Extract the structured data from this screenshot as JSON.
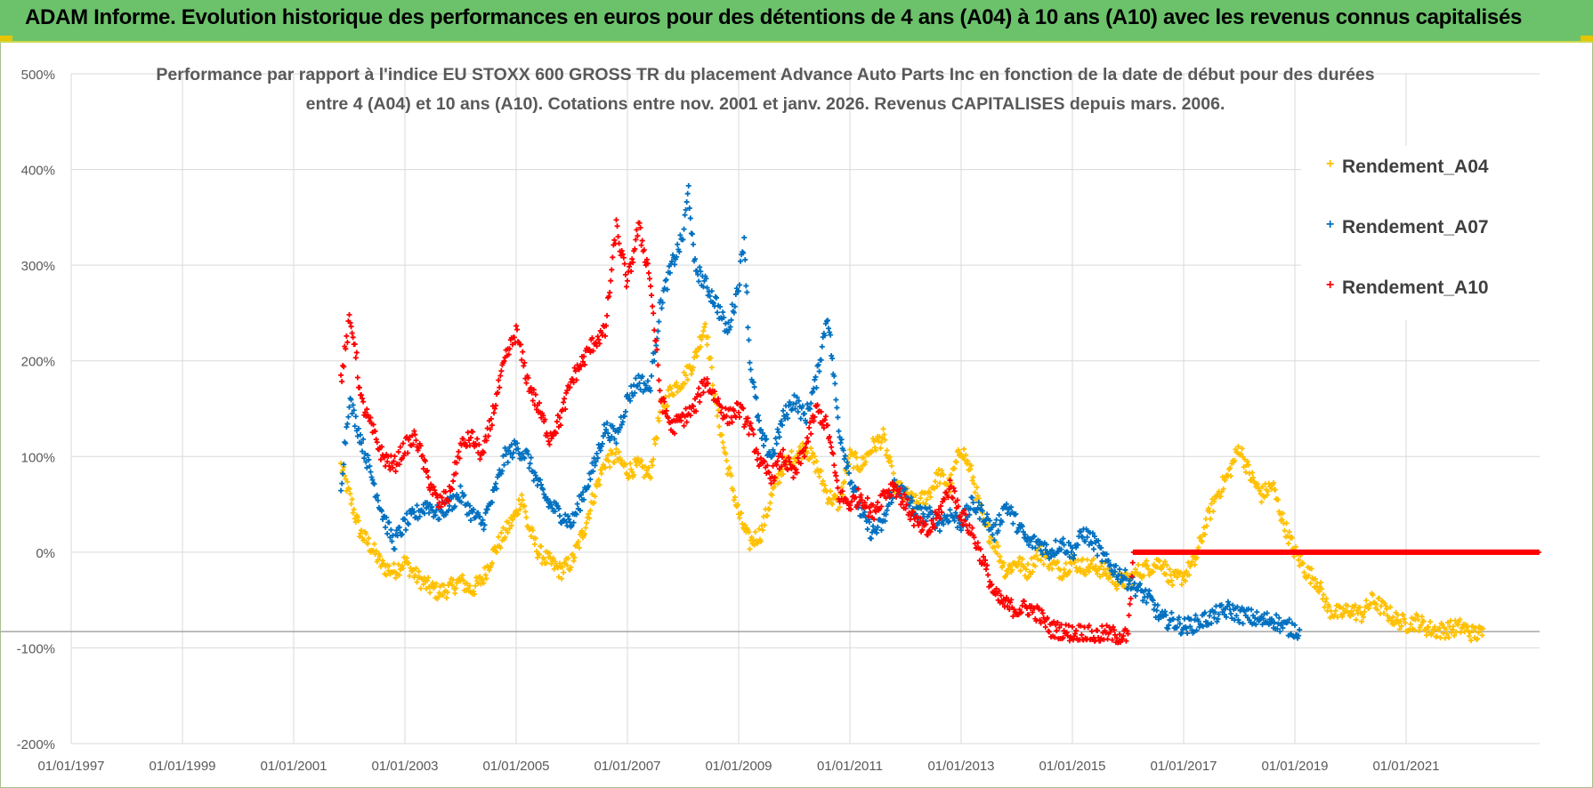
{
  "header": {
    "title": "ADAM Informe. Evolution historique des performances en euros pour des détentions de 4 ans (A04) à 10 ans (A10) avec les revenus connus capitalisés"
  },
  "colors": {
    "header_bg": "#6cc26b",
    "A04": "#ffc000",
    "A07": "#0070c0",
    "A10": "#ff0000",
    "grid": "#d9d9d9"
  },
  "chart_data": {
    "type": "scatter",
    "title_line1": "Performance par rapport à l'indice EU STOXX 600 GROSS TR  du placement Advance Auto Parts Inc en fonction de la date de début pour des durées",
    "title_line2": "entre 4 (A04) et 10 ans (A10).  Cotations entre nov. 2001 et janv. 2026. Revenus CAPITALISES depuis mars. 2006.",
    "xlabel": "",
    "ylabel": "",
    "x_range": [
      1997.0,
      2023.4
    ],
    "ylim": [
      -200,
      500
    ],
    "y_ticks": [
      500,
      400,
      300,
      200,
      100,
      0,
      -100,
      -200
    ],
    "y_tick_labels": [
      "500%",
      "400%",
      "300%",
      "200%",
      "100%",
      "0%",
      "-100%",
      "-200%"
    ],
    "x_ticks": [
      1997,
      1999,
      2001,
      2003,
      2005,
      2007,
      2009,
      2011,
      2013,
      2015,
      2017,
      2019,
      2021
    ],
    "x_tick_labels": [
      "01/01/1997",
      "01/01/1999",
      "01/01/2001",
      "01/01/2003",
      "01/01/2005",
      "01/01/2007",
      "01/01/2009",
      "01/01/2011",
      "01/01/2013",
      "01/01/2015",
      "01/01/2017",
      "01/01/2019",
      "01/01/2021"
    ],
    "reference_line": -83,
    "legend_position": "right",
    "series": [
      {
        "name": "Rendement_A04",
        "color": "#ffc000",
        "points": [
          [
            2001.85,
            90
          ],
          [
            2002.0,
            60
          ],
          [
            2002.2,
            20
          ],
          [
            2002.4,
            5
          ],
          [
            2002.6,
            -15
          ],
          [
            2002.8,
            -20
          ],
          [
            2003.0,
            -10
          ],
          [
            2003.2,
            -25
          ],
          [
            2003.4,
            -35
          ],
          [
            2003.6,
            -42
          ],
          [
            2003.8,
            -38
          ],
          [
            2004.0,
            -30
          ],
          [
            2004.2,
            -40
          ],
          [
            2004.4,
            -28
          ],
          [
            2004.6,
            0
          ],
          [
            2004.8,
            20
          ],
          [
            2005.0,
            40
          ],
          [
            2005.1,
            60
          ],
          [
            2005.2,
            30
          ],
          [
            2005.4,
            0
          ],
          [
            2005.6,
            -10
          ],
          [
            2005.8,
            -20
          ],
          [
            2006.0,
            -10
          ],
          [
            2006.2,
            20
          ],
          [
            2006.4,
            60
          ],
          [
            2006.6,
            95
          ],
          [
            2006.8,
            100
          ],
          [
            2007.0,
            85
          ],
          [
            2007.2,
            90
          ],
          [
            2007.4,
            80
          ],
          [
            2007.6,
            150
          ],
          [
            2007.8,
            170
          ],
          [
            2008.0,
            180
          ],
          [
            2008.2,
            200
          ],
          [
            2008.4,
            240
          ],
          [
            2008.6,
            150
          ],
          [
            2008.8,
            90
          ],
          [
            2009.0,
            40
          ],
          [
            2009.2,
            10
          ],
          [
            2009.4,
            20
          ],
          [
            2009.6,
            60
          ],
          [
            2009.8,
            90
          ],
          [
            2010.0,
            100
          ],
          [
            2010.2,
            110
          ],
          [
            2010.4,
            90
          ],
          [
            2010.6,
            60
          ],
          [
            2010.8,
            50
          ],
          [
            2011.0,
            100
          ],
          [
            2011.2,
            90
          ],
          [
            2011.4,
            110
          ],
          [
            2011.6,
            120
          ],
          [
            2011.8,
            70
          ],
          [
            2012.0,
            60
          ],
          [
            2012.2,
            50
          ],
          [
            2012.4,
            60
          ],
          [
            2012.6,
            80
          ],
          [
            2012.8,
            70
          ],
          [
            2013.0,
            110
          ],
          [
            2013.2,
            80
          ],
          [
            2013.4,
            30
          ],
          [
            2013.6,
            10
          ],
          [
            2013.8,
            -20
          ],
          [
            2014.0,
            -10
          ],
          [
            2014.2,
            -20
          ],
          [
            2014.4,
            0
          ],
          [
            2014.6,
            -10
          ],
          [
            2014.8,
            -20
          ],
          [
            2015.0,
            -10
          ],
          [
            2015.2,
            -15
          ],
          [
            2015.4,
            -15
          ],
          [
            2015.6,
            -20
          ],
          [
            2015.8,
            -30
          ],
          [
            2016.0,
            -30
          ],
          [
            2016.2,
            -20
          ],
          [
            2016.4,
            -15
          ],
          [
            2016.6,
            -10
          ],
          [
            2016.8,
            -30
          ],
          [
            2017.0,
            -25
          ],
          [
            2017.2,
            -10
          ],
          [
            2017.4,
            30
          ],
          [
            2017.6,
            60
          ],
          [
            2017.8,
            80
          ],
          [
            2018.0,
            110
          ],
          [
            2018.2,
            80
          ],
          [
            2018.4,
            60
          ],
          [
            2018.6,
            70
          ],
          [
            2018.8,
            30
          ],
          [
            2019.0,
            0
          ],
          [
            2019.2,
            -20
          ],
          [
            2019.4,
            -30
          ],
          [
            2019.6,
            -60
          ],
          [
            2019.8,
            -65
          ],
          [
            2020.0,
            -60
          ],
          [
            2020.2,
            -65
          ],
          [
            2020.4,
            -50
          ],
          [
            2020.6,
            -60
          ],
          [
            2020.8,
            -70
          ],
          [
            2021.0,
            -75
          ],
          [
            2021.2,
            -72
          ],
          [
            2021.4,
            -80
          ],
          [
            2021.6,
            -82
          ],
          [
            2021.8,
            -80
          ],
          [
            2022.0,
            -78
          ],
          [
            2022.2,
            -85
          ],
          [
            2022.4,
            -85
          ]
        ]
      },
      {
        "name": "Rendement_A07",
        "color": "#0070c0",
        "points": [
          [
            2001.85,
            70
          ],
          [
            2002.0,
            160
          ],
          [
            2002.2,
            120
          ],
          [
            2002.4,
            80
          ],
          [
            2002.6,
            40
          ],
          [
            2002.8,
            10
          ],
          [
            2003.0,
            30
          ],
          [
            2003.2,
            40
          ],
          [
            2003.4,
            50
          ],
          [
            2003.6,
            40
          ],
          [
            2003.8,
            50
          ],
          [
            2004.0,
            60
          ],
          [
            2004.2,
            40
          ],
          [
            2004.4,
            30
          ],
          [
            2004.6,
            60
          ],
          [
            2004.8,
            100
          ],
          [
            2005.0,
            110
          ],
          [
            2005.2,
            100
          ],
          [
            2005.4,
            70
          ],
          [
            2005.6,
            50
          ],
          [
            2005.8,
            40
          ],
          [
            2006.0,
            30
          ],
          [
            2006.2,
            60
          ],
          [
            2006.4,
            90
          ],
          [
            2006.6,
            130
          ],
          [
            2006.8,
            120
          ],
          [
            2007.0,
            160
          ],
          [
            2007.2,
            180
          ],
          [
            2007.4,
            170
          ],
          [
            2007.6,
            260
          ],
          [
            2007.8,
            300
          ],
          [
            2008.0,
            330
          ],
          [
            2008.1,
            380
          ],
          [
            2008.2,
            300
          ],
          [
            2008.4,
            280
          ],
          [
            2008.6,
            260
          ],
          [
            2008.8,
            230
          ],
          [
            2009.0,
            280
          ],
          [
            2009.1,
            330
          ],
          [
            2009.2,
            200
          ],
          [
            2009.4,
            120
          ],
          [
            2009.6,
            100
          ],
          [
            2009.8,
            140
          ],
          [
            2010.0,
            160
          ],
          [
            2010.2,
            140
          ],
          [
            2010.4,
            180
          ],
          [
            2010.6,
            250
          ],
          [
            2010.8,
            130
          ],
          [
            2011.0,
            80
          ],
          [
            2011.2,
            40
          ],
          [
            2011.4,
            20
          ],
          [
            2011.6,
            30
          ],
          [
            2011.8,
            70
          ],
          [
            2012.0,
            60
          ],
          [
            2012.2,
            40
          ],
          [
            2012.4,
            40
          ],
          [
            2012.6,
            30
          ],
          [
            2012.8,
            40
          ],
          [
            2013.0,
            30
          ],
          [
            2013.2,
            50
          ],
          [
            2013.4,
            40
          ],
          [
            2013.6,
            20
          ],
          [
            2013.8,
            50
          ],
          [
            2014.0,
            30
          ],
          [
            2014.2,
            10
          ],
          [
            2014.4,
            10
          ],
          [
            2014.6,
            0
          ],
          [
            2014.8,
            10
          ],
          [
            2015.0,
            0
          ],
          [
            2015.2,
            20
          ],
          [
            2015.4,
            10
          ],
          [
            2015.6,
            -10
          ],
          [
            2015.8,
            -20
          ],
          [
            2016.0,
            -30
          ],
          [
            2016.2,
            -40
          ],
          [
            2016.4,
            -50
          ],
          [
            2016.6,
            -70
          ],
          [
            2016.8,
            -72
          ],
          [
            2017.0,
            -78
          ],
          [
            2017.2,
            -75
          ],
          [
            2017.4,
            -70
          ],
          [
            2017.6,
            -65
          ],
          [
            2017.8,
            -60
          ],
          [
            2018.0,
            -65
          ],
          [
            2018.2,
            -68
          ],
          [
            2018.4,
            -72
          ],
          [
            2018.6,
            -70
          ],
          [
            2018.8,
            -78
          ],
          [
            2019.0,
            -80
          ],
          [
            2019.1,
            -85
          ]
        ]
      },
      {
        "name": "Rendement_A10",
        "color": "#ff0000",
        "points": [
          [
            2001.85,
            180
          ],
          [
            2002.0,
            240
          ],
          [
            2002.1,
            220
          ],
          [
            2002.2,
            160
          ],
          [
            2002.4,
            130
          ],
          [
            2002.6,
            100
          ],
          [
            2002.8,
            90
          ],
          [
            2003.0,
            110
          ],
          [
            2003.2,
            120
          ],
          [
            2003.4,
            80
          ],
          [
            2003.6,
            50
          ],
          [
            2003.8,
            60
          ],
          [
            2004.0,
            110
          ],
          [
            2004.2,
            120
          ],
          [
            2004.4,
            100
          ],
          [
            2004.6,
            150
          ],
          [
            2004.8,
            200
          ],
          [
            2005.0,
            230
          ],
          [
            2005.2,
            180
          ],
          [
            2005.4,
            150
          ],
          [
            2005.6,
            120
          ],
          [
            2005.8,
            140
          ],
          [
            2006.0,
            180
          ],
          [
            2006.2,
            200
          ],
          [
            2006.4,
            220
          ],
          [
            2006.6,
            230
          ],
          [
            2006.8,
            340
          ],
          [
            2007.0,
            280
          ],
          [
            2007.2,
            340
          ],
          [
            2007.4,
            290
          ],
          [
            2007.6,
            160
          ],
          [
            2007.8,
            130
          ],
          [
            2008.0,
            140
          ],
          [
            2008.2,
            150
          ],
          [
            2008.4,
            180
          ],
          [
            2008.6,
            160
          ],
          [
            2008.8,
            140
          ],
          [
            2009.0,
            150
          ],
          [
            2009.2,
            130
          ],
          [
            2009.4,
            90
          ],
          [
            2009.6,
            80
          ],
          [
            2009.8,
            100
          ],
          [
            2010.0,
            80
          ],
          [
            2010.2,
            110
          ],
          [
            2010.4,
            150
          ],
          [
            2010.6,
            130
          ],
          [
            2010.8,
            60
          ],
          [
            2011.0,
            50
          ],
          [
            2011.2,
            60
          ],
          [
            2011.4,
            40
          ],
          [
            2011.6,
            60
          ],
          [
            2011.8,
            70
          ],
          [
            2012.0,
            50
          ],
          [
            2012.2,
            30
          ],
          [
            2012.4,
            20
          ],
          [
            2012.6,
            40
          ],
          [
            2012.8,
            70
          ],
          [
            2013.0,
            40
          ],
          [
            2013.2,
            20
          ],
          [
            2013.4,
            -10
          ],
          [
            2013.6,
            -45
          ],
          [
            2013.8,
            -55
          ],
          [
            2014.0,
            -60
          ],
          [
            2014.2,
            -58
          ],
          [
            2014.4,
            -65
          ],
          [
            2014.6,
            -80
          ],
          [
            2014.8,
            -82
          ],
          [
            2015.0,
            -85
          ],
          [
            2015.2,
            -83
          ],
          [
            2015.4,
            -88
          ],
          [
            2015.6,
            -85
          ],
          [
            2015.8,
            -87
          ],
          [
            2016.0,
            -88
          ],
          [
            2016.1,
            0
          ],
          [
            2023.4,
            0
          ]
        ]
      }
    ]
  }
}
